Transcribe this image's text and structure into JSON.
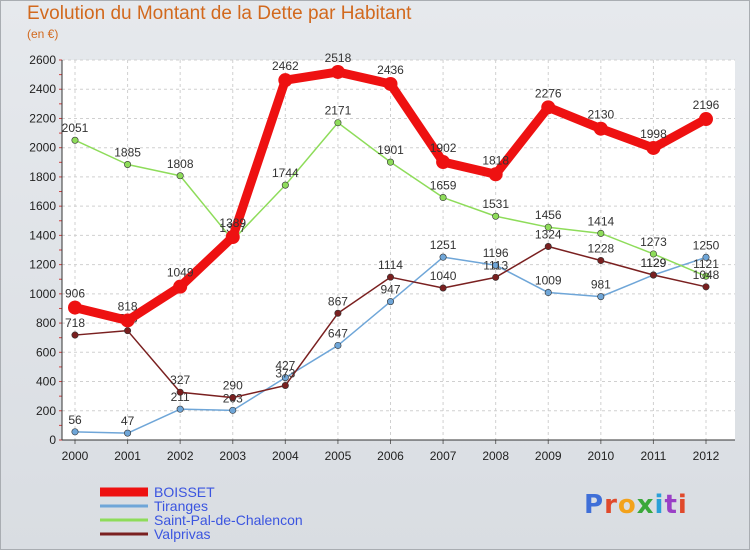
{
  "header": {
    "title": "Evolution du Montant de la Dette par Habitant",
    "subtitle": "(en €)"
  },
  "logo": {
    "text": "Proxiti",
    "letters": [
      "P",
      "r",
      "o",
      "x",
      "i",
      "t",
      "i"
    ]
  },
  "chart_data": {
    "type": "line",
    "x": [
      "2000",
      "2001",
      "2002",
      "2003",
      "2004",
      "2005",
      "2006",
      "2007",
      "2008",
      "2009",
      "2010",
      "2011",
      "2012"
    ],
    "ylim": [
      0,
      2600
    ],
    "yticks": [
      0,
      200,
      400,
      600,
      800,
      1000,
      1200,
      1400,
      1600,
      1800,
      2000,
      2200,
      2400,
      2600
    ],
    "grid": true,
    "legend": "bottom-left",
    "series": [
      {
        "name": "BOISSET",
        "color": "#ee1111",
        "values": [
          906,
          818,
          1049,
          1389,
          2462,
          2518,
          2436,
          1902,
          1818,
          2276,
          2130,
          1998,
          2196
        ]
      },
      {
        "name": "Tiranges",
        "color": "#6fa6d8",
        "values": [
          56,
          47,
          211,
          203,
          427,
          647,
          947,
          1251,
          1196,
          1009,
          981,
          1129,
          1250
        ]
      },
      {
        "name": "Saint-Pal-de-Chalencon",
        "color": "#8edc5a",
        "values": [
          2051,
          1885,
          1808,
          1367,
          1744,
          2171,
          1901,
          1659,
          1531,
          1456,
          1414,
          1273,
          1121
        ]
      },
      {
        "name": "Valprivas",
        "color": "#7a2020",
        "values": [
          718,
          748,
          327,
          290,
          373,
          867,
          1114,
          1040,
          1113,
          1324,
          1228,
          1129,
          1048
        ]
      }
    ]
  }
}
